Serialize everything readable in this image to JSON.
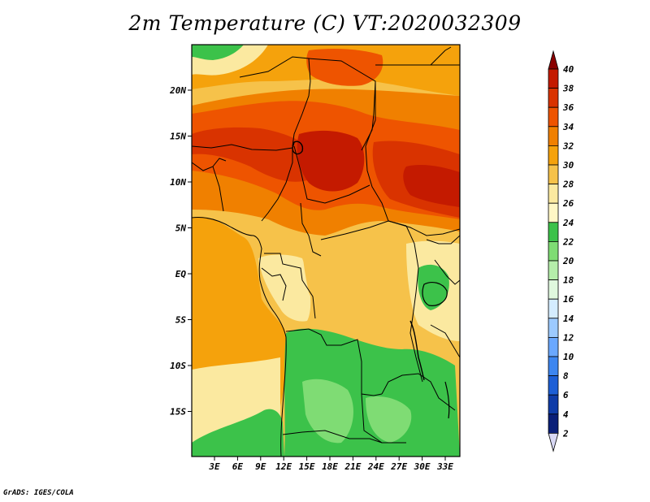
{
  "title": "2m Temperature (C) VT:2020032309",
  "credit": "GrADS: IGES/COLA",
  "map": {
    "lat_labels": [
      "20N",
      "15N",
      "10N",
      "5N",
      "EQ",
      "5S",
      "10S",
      "15S"
    ],
    "lon_labels": [
      "3E",
      "6E",
      "9E",
      "12E",
      "15E",
      "18E",
      "21E",
      "24E",
      "27E",
      "30E",
      "33E"
    ]
  },
  "colorbar": {
    "labels": [
      "40",
      "38",
      "36",
      "34",
      "32",
      "30",
      "28",
      "26",
      "24",
      "22",
      "20",
      "18",
      "16",
      "14",
      "12",
      "10",
      "8",
      "6",
      "4",
      "2"
    ],
    "colors": [
      "#a50000",
      "#c41a00",
      "#d93300",
      "#ee5400",
      "#f08000",
      "#f5a20c",
      "#f6c24a",
      "#fbe9a0",
      "#fff7c5",
      "#3cc24a",
      "#7fdc74",
      "#b5eeaa",
      "#e0f8de",
      "#d4ecff",
      "#9ccaff",
      "#6aa8ff",
      "#3d86f0",
      "#1d5fd6",
      "#0f3ca8",
      "#0a1f78"
    ],
    "top_arrow_color": "#8a0000",
    "bottom_arrow_color": "#d8d8f4"
  }
}
